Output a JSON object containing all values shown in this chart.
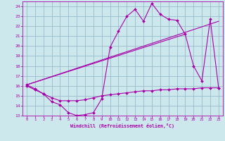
{
  "xlabel": "Windchill (Refroidissement éolien,°C)",
  "bg_color": "#cce8ec",
  "line_color": "#aa00aa",
  "grid_color": "#99bbcc",
  "xlim": [
    -0.5,
    23.5
  ],
  "ylim": [
    13,
    24.5
  ],
  "yticks": [
    13,
    14,
    15,
    16,
    17,
    18,
    19,
    20,
    21,
    22,
    23,
    24
  ],
  "xticks": [
    0,
    1,
    2,
    3,
    4,
    5,
    6,
    7,
    8,
    9,
    10,
    11,
    12,
    13,
    14,
    15,
    16,
    17,
    18,
    19,
    20,
    21,
    22,
    23
  ],
  "series1_x": [
    0,
    1,
    2,
    3,
    4,
    5,
    6,
    7,
    8,
    9,
    10,
    11,
    12,
    13,
    14,
    15,
    16,
    17,
    18,
    19,
    20,
    21,
    22,
    23
  ],
  "series1_y": [
    16.1,
    15.7,
    15.2,
    14.4,
    14.1,
    13.3,
    13.0,
    13.1,
    13.3,
    14.7,
    19.9,
    21.5,
    23.0,
    23.7,
    22.5,
    24.3,
    23.2,
    22.7,
    22.6,
    21.2,
    18.0,
    16.5,
    22.7,
    15.8
  ],
  "series2_x": [
    0,
    1,
    2,
    3,
    4,
    5,
    6,
    7,
    8,
    9,
    10,
    11,
    12,
    13,
    14,
    15,
    16,
    17,
    18,
    19,
    20,
    21,
    22,
    23
  ],
  "series2_y": [
    16.0,
    15.6,
    15.2,
    14.8,
    14.5,
    14.5,
    14.5,
    14.6,
    14.8,
    15.0,
    15.1,
    15.2,
    15.3,
    15.4,
    15.5,
    15.5,
    15.6,
    15.6,
    15.7,
    15.7,
    15.7,
    15.8,
    15.8,
    15.8
  ],
  "series3_x": [
    0,
    23
  ],
  "series3_y": [
    16.1,
    22.5
  ],
  "series4_x": [
    0,
    19
  ],
  "series4_y": [
    16.1,
    21.2
  ]
}
